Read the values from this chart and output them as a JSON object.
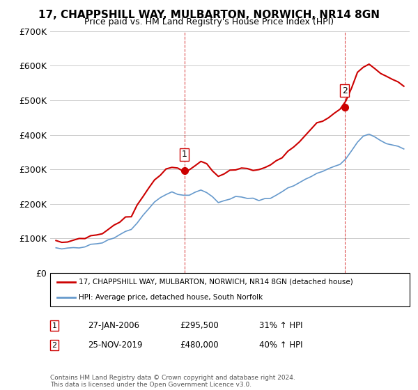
{
  "title": "17, CHAPPSHILL WAY, MULBARTON, NORWICH, NR14 8GN",
  "subtitle": "Price paid vs. HM Land Registry's House Price Index (HPI)",
  "legend_line1": "17, CHAPPSHILL WAY, MULBARTON, NORWICH, NR14 8GN (detached house)",
  "legend_line2": "HPI: Average price, detached house, South Norfolk",
  "sale1_label": "1",
  "sale1_date": "27-JAN-2006",
  "sale1_price": "£295,500",
  "sale1_hpi": "31% ↑ HPI",
  "sale2_label": "2",
  "sale2_date": "25-NOV-2019",
  "sale2_price": "£480,000",
  "sale2_hpi": "40% ↑ HPI",
  "footnote": "Contains HM Land Registry data © Crown copyright and database right 2024.\nThis data is licensed under the Open Government Licence v3.0.",
  "red_color": "#cc0000",
  "blue_color": "#6699cc",
  "marker_color_1": "#cc0000",
  "marker_color_2": "#cc0000",
  "dashed_line_color": "#cc0000",
  "ylim": [
    0,
    700000
  ],
  "yticks": [
    0,
    100000,
    200000,
    300000,
    400000,
    500000,
    600000,
    700000
  ],
  "ytick_labels": [
    "£0",
    "£100K",
    "£200K",
    "£300K",
    "£400K",
    "£500K",
    "£600K",
    "£700K"
  ]
}
